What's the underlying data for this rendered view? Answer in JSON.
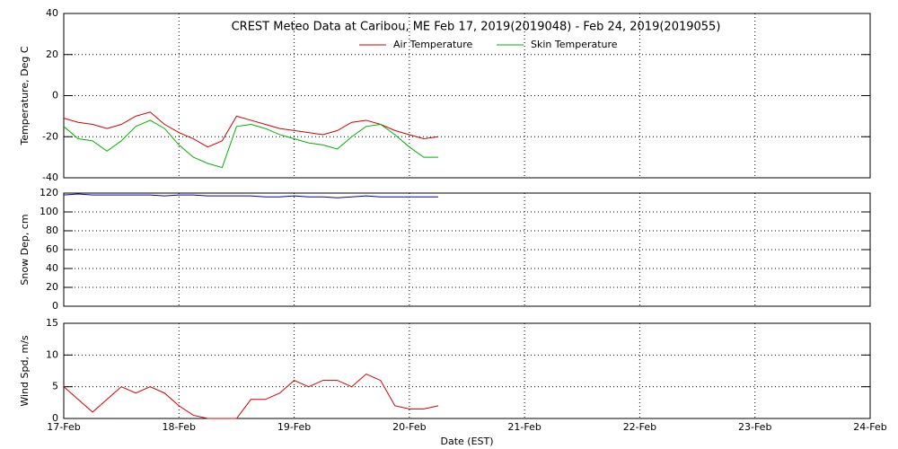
{
  "chart_data": [
    {
      "type": "line",
      "title": "CREST Meteo Data at Caribou, ME   Feb 17, 2019(2019048) - Feb 24, 2019(2019055)",
      "ylabel": "Temperature, Deg C",
      "x": [
        0,
        0.125,
        0.25,
        0.375,
        0.5,
        0.625,
        0.75,
        0.875,
        1,
        1.125,
        1.25,
        1.375,
        1.5,
        1.625,
        1.75,
        1.875,
        2,
        2.125,
        2.25,
        2.375,
        2.5,
        2.625,
        2.75,
        2.875,
        3,
        3.125,
        3.25
      ],
      "series": [
        {
          "name": "Air Temperature",
          "color": "#d00000",
          "values": [
            -11,
            -13,
            -14,
            -16,
            -14,
            -10,
            -8,
            -14,
            -18,
            -21,
            -25,
            -22,
            -10,
            -12,
            -14,
            -16,
            -17,
            -18,
            -19,
            -17,
            -13,
            -12,
            -14,
            -17,
            -19,
            -21,
            -20
          ]
        },
        {
          "name": "Skin Temperature",
          "color": "#00b000",
          "values": [
            -15,
            -21,
            -22,
            -27,
            -22,
            -15,
            -12,
            -16,
            -24,
            -30,
            -33,
            -35,
            -15,
            -14,
            -16,
            -19,
            -21,
            -23,
            -24,
            -26,
            -20,
            -15,
            -14,
            -19,
            -25,
            -30,
            -30
          ]
        }
      ],
      "xlim": [
        0,
        7
      ],
      "xticks": [
        0,
        1,
        2,
        3,
        4,
        5,
        6,
        7
      ],
      "ylim": [
        -40,
        40
      ],
      "yticks": [
        -40,
        -20,
        0,
        20,
        40
      ],
      "grid": true
    },
    {
      "type": "line",
      "ylabel": "Snow Dep, cm",
      "x": [
        0,
        0.125,
        0.25,
        0.375,
        0.5,
        0.625,
        0.75,
        0.875,
        1,
        1.125,
        1.25,
        1.375,
        1.5,
        1.625,
        1.75,
        1.875,
        2,
        2.125,
        2.25,
        2.375,
        2.5,
        2.625,
        2.75,
        2.875,
        3,
        3.125,
        3.25
      ],
      "values": [
        118,
        119,
        118,
        118,
        118,
        118,
        118,
        117,
        118,
        118,
        117,
        117,
        117,
        117,
        116,
        116,
        117,
        116,
        116,
        115,
        116,
        117,
        116,
        116,
        116,
        116,
        116
      ],
      "color": "#0000a0",
      "xlim": [
        0,
        7
      ],
      "xticks": [
        0,
        1,
        2,
        3,
        4,
        5,
        6,
        7
      ],
      "ylim": [
        0,
        120
      ],
      "yticks": [
        0,
        20,
        40,
        60,
        80,
        100,
        120
      ],
      "grid": true
    },
    {
      "type": "line",
      "ylabel": "Wind Spd, m/s",
      "xlabel": "Date (EST)",
      "x": [
        0,
        0.125,
        0.25,
        0.375,
        0.5,
        0.625,
        0.75,
        0.875,
        1,
        1.125,
        1.25,
        1.375,
        1.5,
        1.625,
        1.75,
        1.875,
        2,
        2.125,
        2.25,
        2.375,
        2.5,
        2.625,
        2.75,
        2.875,
        3,
        3.125,
        3.25
      ],
      "values": [
        5,
        3,
        1,
        3,
        5,
        4,
        5,
        4,
        2,
        0.5,
        0,
        0,
        0,
        3,
        3,
        4,
        6,
        5,
        6,
        6,
        5,
        7,
        6,
        2,
        1.5,
        1.5,
        2
      ],
      "color": "#d00000",
      "xlim": [
        0,
        7
      ],
      "xticks": [
        {
          "value": 0,
          "label": "17-Feb"
        },
        {
          "value": 1,
          "label": "18-Feb"
        },
        {
          "value": 2,
          "label": "19-Feb"
        },
        {
          "value": 3,
          "label": "20-Feb"
        },
        {
          "value": 4,
          "label": "21-Feb"
        },
        {
          "value": 5,
          "label": "22-Feb"
        },
        {
          "value": 6,
          "label": "23-Feb"
        },
        {
          "value": 7,
          "label": "24-Feb"
        }
      ],
      "ylim": [
        0,
        15
      ],
      "yticks": [
        0,
        5,
        10,
        15
      ],
      "grid": true
    }
  ]
}
